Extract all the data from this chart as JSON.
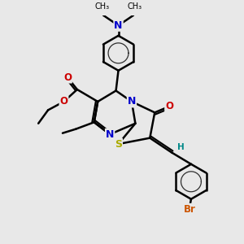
{
  "bg_color": "#e8e8e8",
  "bond_color": "#000000",
  "bond_width": 1.8,
  "atom_colors": {
    "N": "#0000cc",
    "O": "#cc0000",
    "S": "#aaaa00",
    "Br": "#cc5500",
    "H": "#008888",
    "C": "#000000"
  },
  "fig_size": [
    3.0,
    3.0
  ],
  "dpi": 100
}
